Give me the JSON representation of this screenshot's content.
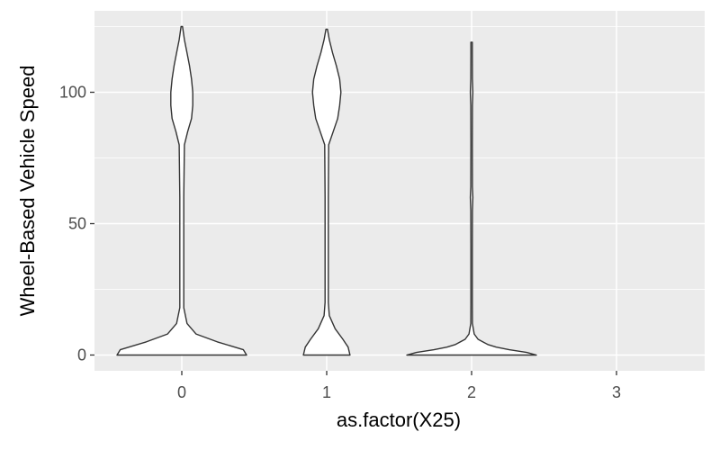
{
  "chart_data": {
    "type": "violin",
    "title": "",
    "xlabel": "as.factor(X25)",
    "ylabel": "Wheel-Based Vehicle Speed",
    "categories": [
      "0",
      "1",
      "2",
      "3"
    ],
    "yticks": [
      0,
      50,
      100
    ],
    "ylim": [
      -6,
      131
    ],
    "grid": true,
    "legend": "none",
    "colors": {
      "panel_background": "#ebebeb",
      "grid": "#ffffff",
      "violin_fill": "#ffffff",
      "violin_outline": "#333333"
    },
    "violins": [
      {
        "category": "0",
        "profile": [
          [
            0,
            1.0
          ],
          [
            2,
            0.95
          ],
          [
            5,
            0.55
          ],
          [
            8,
            0.22
          ],
          [
            12,
            0.08
          ],
          [
            18,
            0.03
          ],
          [
            30,
            0.03
          ],
          [
            60,
            0.03
          ],
          [
            80,
            0.04
          ],
          [
            85,
            0.09
          ],
          [
            90,
            0.15
          ],
          [
            95,
            0.17
          ],
          [
            100,
            0.17
          ],
          [
            105,
            0.15
          ],
          [
            110,
            0.12
          ],
          [
            115,
            0.08
          ],
          [
            120,
            0.04
          ],
          [
            125,
            0.01
          ]
        ]
      },
      {
        "category": "1",
        "profile": [
          [
            0,
            0.36
          ],
          [
            3,
            0.33
          ],
          [
            6,
            0.25
          ],
          [
            10,
            0.13
          ],
          [
            15,
            0.04
          ],
          [
            20,
            0.025
          ],
          [
            40,
            0.025
          ],
          [
            60,
            0.025
          ],
          [
            80,
            0.03
          ],
          [
            85,
            0.1
          ],
          [
            90,
            0.17
          ],
          [
            95,
            0.2
          ],
          [
            100,
            0.22
          ],
          [
            105,
            0.2
          ],
          [
            110,
            0.15
          ],
          [
            115,
            0.09
          ],
          [
            120,
            0.04
          ],
          [
            124,
            0.005
          ]
        ]
      },
      {
        "category": "2",
        "profile": [
          [
            0,
            1.0
          ],
          [
            1,
            0.85
          ],
          [
            2,
            0.58
          ],
          [
            3,
            0.38
          ],
          [
            4,
            0.25
          ],
          [
            6,
            0.1
          ],
          [
            8,
            0.04
          ],
          [
            12,
            0.012
          ],
          [
            20,
            0.01
          ],
          [
            40,
            0.01
          ],
          [
            55,
            0.012
          ],
          [
            60,
            0.02
          ],
          [
            64,
            0.012
          ],
          [
            80,
            0.01
          ],
          [
            95,
            0.012
          ],
          [
            100,
            0.02
          ],
          [
            105,
            0.012
          ],
          [
            115,
            0.008
          ],
          [
            119,
            0.003
          ]
        ]
      }
    ]
  }
}
